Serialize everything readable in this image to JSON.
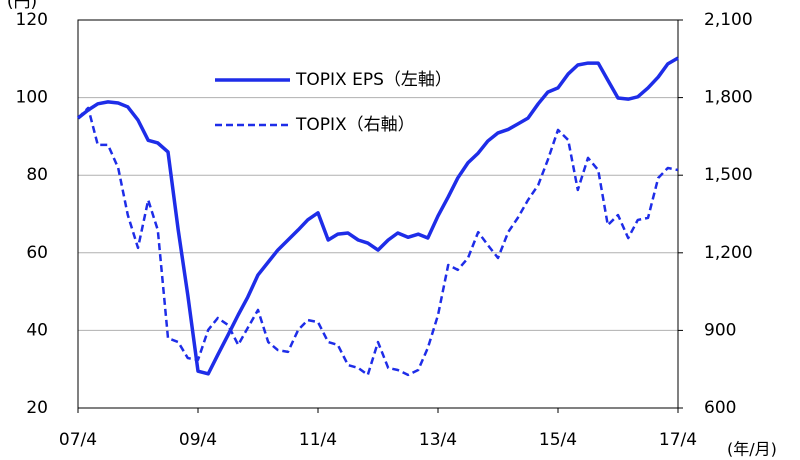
{
  "chart_data": {
    "type": "line",
    "y_label": "(円)",
    "x_label": "(年/月)",
    "x": [
      2007.25,
      2007.42,
      2007.58,
      2007.75,
      2007.92,
      2008.08,
      2008.25,
      2008.42,
      2008.58,
      2008.75,
      2008.92,
      2009.08,
      2009.25,
      2009.42,
      2009.58,
      2009.75,
      2009.92,
      2010.08,
      2010.25,
      2010.42,
      2010.58,
      2010.75,
      2010.92,
      2011.08,
      2011.25,
      2011.42,
      2011.58,
      2011.75,
      2011.92,
      2012.08,
      2012.25,
      2012.42,
      2012.58,
      2012.75,
      2012.92,
      2013.08,
      2013.25,
      2013.42,
      2013.58,
      2013.75,
      2013.92,
      2014.08,
      2014.25,
      2014.42,
      2014.58,
      2014.75,
      2014.92,
      2015.08,
      2015.25,
      2015.42,
      2015.58,
      2015.75,
      2015.92,
      2016.08,
      2016.25,
      2016.42,
      2016.58,
      2016.75,
      2016.92,
      2017.08,
      2017.25
    ],
    "series": [
      {
        "name": "TOPIX  EPS（左軸）",
        "color": "#1e2de8",
        "dash": false,
        "values": [
          94.7,
          96.8,
          98.4,
          98.9,
          98.6,
          97.6,
          94.2,
          89,
          88.3,
          86,
          65.9,
          49.1,
          29.5,
          28.8,
          33.7,
          38.8,
          44,
          48.6,
          54.3,
          57.6,
          60.7,
          63.3,
          65.9,
          68.5,
          70.3,
          63.3,
          64.8,
          65.1,
          63.3,
          62.5,
          60.7,
          63.3,
          65.1,
          64,
          64.8,
          63.8,
          69.5,
          74.4,
          79.3,
          83.2,
          85.7,
          88.8,
          90.9,
          91.8,
          93.2,
          94.7,
          98.4,
          101.4,
          102.5,
          106.1,
          108.4,
          108.9,
          108.9,
          104.5,
          99.9,
          99.6,
          100.2,
          102.5,
          105.3,
          108.7,
          110.2
        ]
      },
      {
        "name": "TOPIX（右軸）",
        "color": "#1e2de8",
        "dash": true,
        "axis": "y2",
        "values": [
          1721,
          1760,
          1617,
          1617,
          1528,
          1346,
          1219,
          1404,
          1288,
          870,
          855,
          793,
          786,
          902,
          948,
          921,
          844,
          910,
          979,
          855,
          824,
          817,
          902,
          940,
          932,
          855,
          844,
          766,
          755,
          728,
          855,
          755,
          747,
          728,
          747,
          832,
          959,
          1153,
          1134,
          1180,
          1280,
          1230,
          1180,
          1280,
          1335,
          1404,
          1462,
          1559,
          1675,
          1636,
          1443,
          1567,
          1520,
          1307,
          1346,
          1257,
          1327,
          1335,
          1489,
          1528,
          1520
        ]
      }
    ],
    "xlim": [
      2007.25,
      2017.25
    ],
    "xticks": [
      {
        "value": 2007.25,
        "label": "07/4"
      },
      {
        "value": 2009.25,
        "label": "09/4"
      },
      {
        "value": 2011.25,
        "label": "11/4"
      },
      {
        "value": 2013.25,
        "label": "13/4"
      },
      {
        "value": 2015.25,
        "label": "15/4"
      },
      {
        "value": 2017.25,
        "label": "17/4"
      }
    ],
    "ylim": [
      20,
      120
    ],
    "yticks": [
      20,
      40,
      60,
      80,
      100,
      120
    ],
    "y2lim": [
      600,
      2100
    ],
    "y2ticks": [
      {
        "value": 600,
        "label": "600"
      },
      {
        "value": 900,
        "label": "900"
      },
      {
        "value": 1200,
        "label": "1,200"
      },
      {
        "value": 1500,
        "label": "1,500"
      },
      {
        "value": 1800,
        "label": "1,800"
      },
      {
        "value": 2100,
        "label": "2,100"
      }
    ],
    "grid": true
  }
}
